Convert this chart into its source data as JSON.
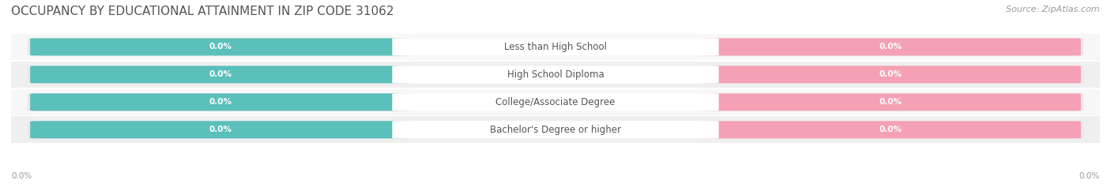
{
  "title": "OCCUPANCY BY EDUCATIONAL ATTAINMENT IN ZIP CODE 31062",
  "source": "Source: ZipAtlas.com",
  "categories": [
    "Less than High School",
    "High School Diploma",
    "College/Associate Degree",
    "Bachelor's Degree or higher"
  ],
  "owner_values": [
    0.0,
    0.0,
    0.0,
    0.0
  ],
  "renter_values": [
    0.0,
    0.0,
    0.0,
    0.0
  ],
  "owner_color": "#5BBFBA",
  "renter_color": "#F4A0B5",
  "bar_bg_color": "#E8E8E8",
  "row_bg_even": "#F7F7F7",
  "row_bg_odd": "#EFEFEF",
  "background_color": "#FFFFFF",
  "title_fontsize": 11,
  "source_fontsize": 8,
  "value_fontsize": 7.5,
  "category_fontsize": 8.5,
  "axis_label_left": "0.0%",
  "axis_label_right": "0.0%"
}
